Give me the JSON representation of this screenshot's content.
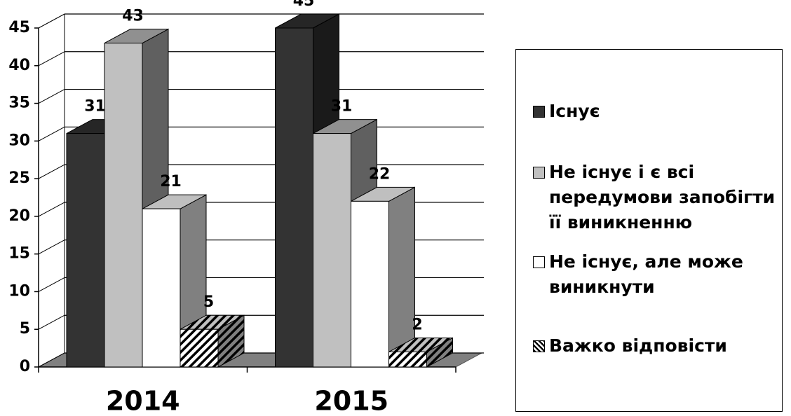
{
  "chart_data": {
    "type": "bar3d",
    "categories": [
      "2014",
      "2015"
    ],
    "series": [
      {
        "name": "Існує",
        "color": "#333333",
        "values": [
          31,
          45
        ]
      },
      {
        "name": "Не існує і є всі передумови запобігти її виникненню",
        "color": "#c0c0c0",
        "values": [
          43,
          31
        ]
      },
      {
        "name": "Не існує, але може виникнути",
        "color": "#ffffff",
        "values": [
          21,
          22
        ]
      },
      {
        "name": "Важко відповісти",
        "color": "#ffffff",
        "pattern": "hatch",
        "values": [
          5,
          2
        ]
      }
    ],
    "ylim": [
      0,
      45
    ],
    "yticks": [
      0,
      5,
      10,
      15,
      20,
      25,
      30,
      35,
      40,
      45
    ],
    "grid": true,
    "legend": "right"
  }
}
